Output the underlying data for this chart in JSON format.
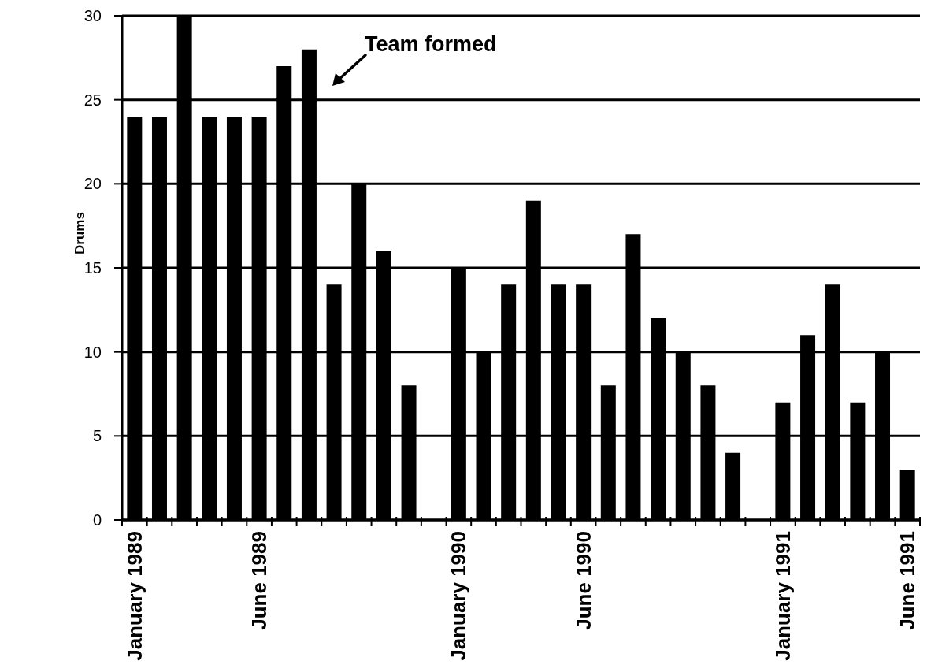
{
  "chart_data": {
    "type": "bar",
    "ylabel": "Drums",
    "annotations": [
      "Team formed"
    ],
    "categories": [
      "January 1989",
      null,
      null,
      null,
      null,
      "June 1989",
      null,
      null,
      null,
      null,
      null,
      null,
      null,
      "January 1990",
      null,
      null,
      null,
      null,
      "June 1990",
      null,
      null,
      null,
      null,
      null,
      null,
      null,
      "January 1991",
      null,
      null,
      null,
      null,
      "June 1991"
    ],
    "values": [
      24,
      24,
      30,
      24,
      24,
      24,
      27,
      28,
      14,
      20,
      16,
      8,
      null,
      15,
      10,
      14,
      19,
      14,
      14,
      8,
      17,
      12,
      10,
      8,
      4,
      null,
      7,
      11,
      14,
      7,
      10,
      3
    ],
    "color": "#000000",
    "ylim": [
      0,
      30
    ],
    "yticks": [
      0,
      5,
      10,
      15,
      20,
      25,
      30
    ],
    "grid": "y"
  }
}
